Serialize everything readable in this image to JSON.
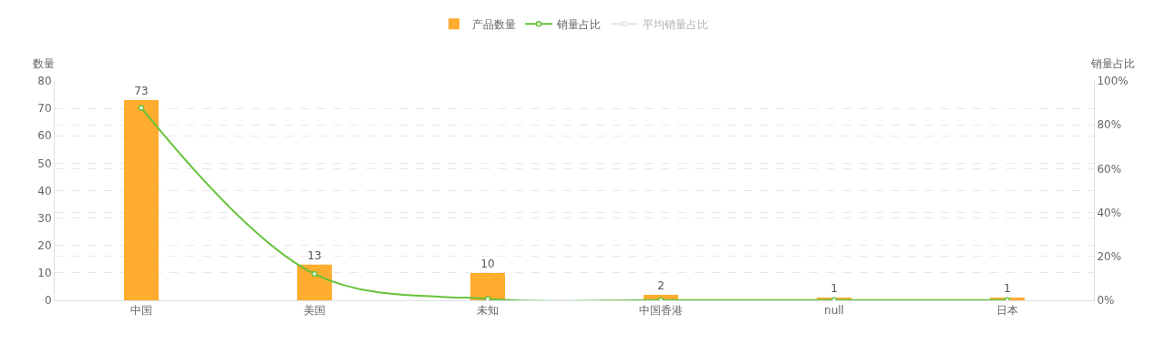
{
  "chart_data": {
    "type": "bar",
    "ylabel": "数量",
    "y2label": "销量占比",
    "categories": [
      "中国",
      "美国",
      "未知",
      "中国香港",
      "null",
      "日本"
    ],
    "series": [
      {
        "name": "产品数量",
        "color": "#ffac2f",
        "values": [
          73,
          13,
          10,
          2,
          1,
          1
        ],
        "value_labels": [
          "73",
          "13",
          "10",
          "2",
          "1",
          "1"
        ]
      },
      {
        "name": "销量占比",
        "type": "line",
        "axis": "y2",
        "color": "#67c23a",
        "marker": "circle",
        "values": [
          87.8,
          12.0,
          0.6,
          0.1,
          0.1,
          0.1
        ]
      },
      {
        "name": "平均销量占比",
        "type": "line",
        "axis": "y2",
        "color": "#cccccc",
        "marker": "circle",
        "values": [
          null,
          null,
          null,
          null,
          null,
          null
        ]
      }
    ],
    "ylim": [
      0,
      80
    ],
    "yticks": [
      0,
      10,
      20,
      30,
      40,
      50,
      60,
      70,
      80
    ],
    "y2lim": [
      0,
      100
    ],
    "y2ticks": [
      {
        "value": 0,
        "label": "0%"
      },
      {
        "value": 20,
        "label": "20%"
      },
      {
        "value": 40,
        "label": "40%"
      },
      {
        "value": 60,
        "label": "60%"
      },
      {
        "value": 80,
        "label": "80%"
      },
      {
        "value": 100,
        "label": "100%"
      }
    ],
    "grid": true,
    "legend": "top"
  }
}
